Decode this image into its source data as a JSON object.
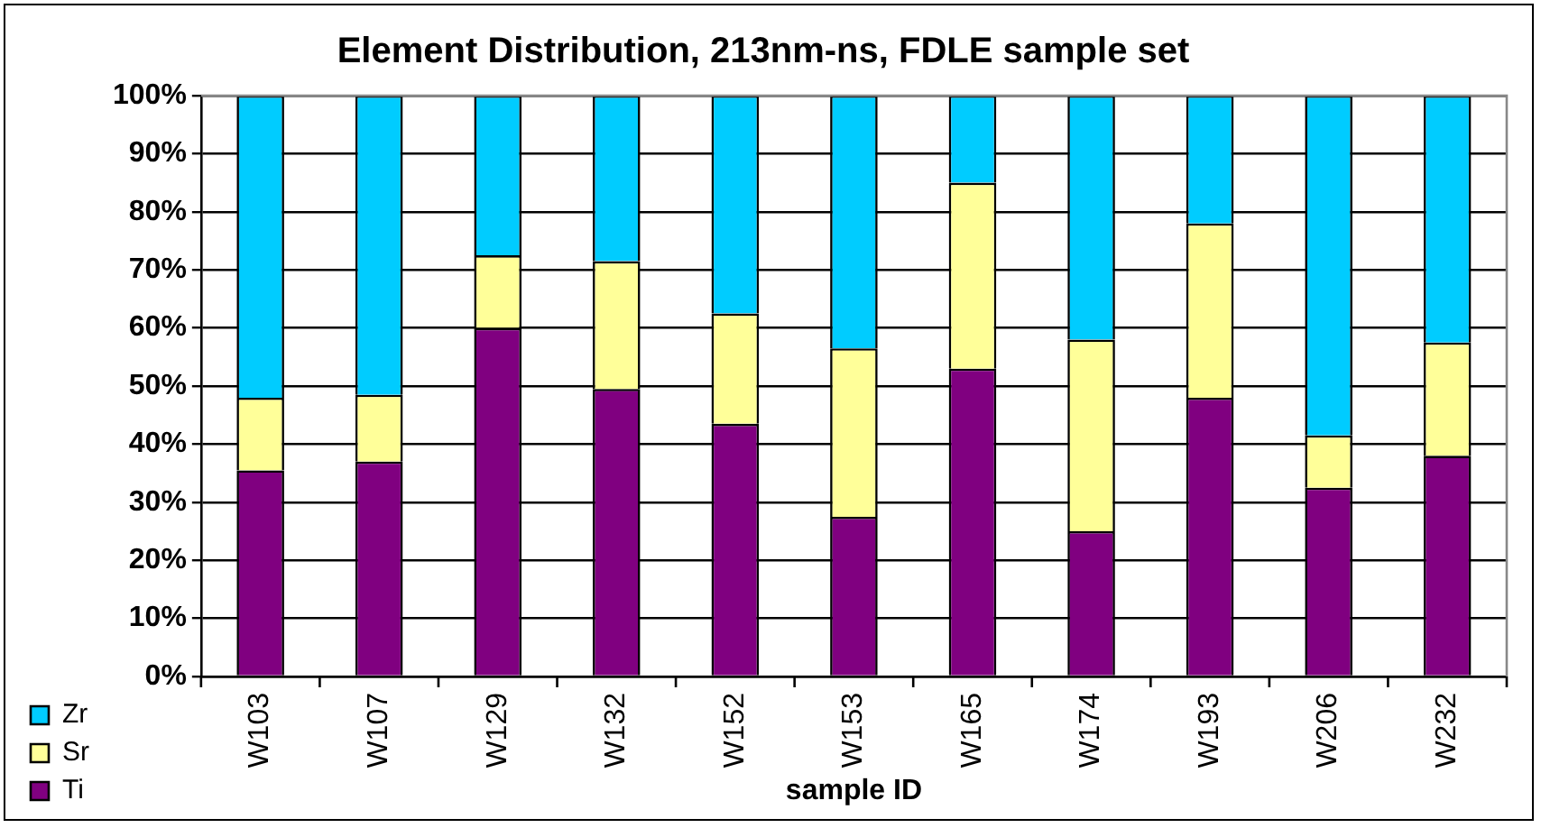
{
  "chart_data": {
    "type": "bar",
    "stacked": true,
    "title": "Element Distribution, 213nm-ns, FDLE sample set",
    "xlabel": "sample ID",
    "categories": [
      "W103",
      "W107",
      "W129",
      "W132",
      "W152",
      "W153",
      "W165",
      "W174",
      "W193",
      "W206",
      "W232"
    ],
    "series": [
      {
        "name": "Ti",
        "color": "#800080",
        "values": [
          35.5,
          37,
          60,
          49.5,
          43.5,
          27.5,
          53,
          25,
          48,
          32.5,
          38
        ]
      },
      {
        "name": "Sr",
        "color": "#ffff99",
        "values": [
          12.5,
          11.5,
          12.5,
          22,
          19,
          29,
          32,
          33,
          30,
          9,
          19.5
        ]
      },
      {
        "name": "Zr",
        "color": "#00ccff",
        "values": [
          52,
          51.5,
          27.5,
          28.5,
          37.5,
          43.5,
          15,
          42,
          22,
          58.5,
          42.5
        ]
      }
    ],
    "ylim": [
      0,
      100
    ],
    "yticks": [
      {
        "value": 0,
        "label": "0%"
      },
      {
        "value": 10,
        "label": "10%"
      },
      {
        "value": 20,
        "label": "20%"
      },
      {
        "value": 30,
        "label": "30%"
      },
      {
        "value": 40,
        "label": "40%"
      },
      {
        "value": 50,
        "label": "50%"
      },
      {
        "value": 60,
        "label": "60%"
      },
      {
        "value": 70,
        "label": "70%"
      },
      {
        "value": 80,
        "label": "80%"
      },
      {
        "value": 90,
        "label": "90%"
      },
      {
        "value": 100,
        "label": "100%"
      }
    ],
    "grid": "y",
    "legend": "bottom left"
  }
}
